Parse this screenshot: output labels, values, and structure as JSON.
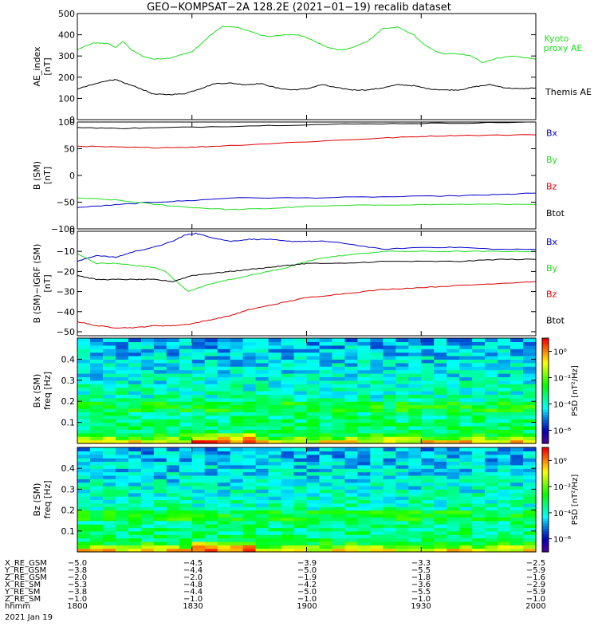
{
  "title": "GEO−KOMPSAT−2A 128.2E (2021−01−19) recalib dataset",
  "colors": {
    "black": "#000000",
    "green": "#22dd22",
    "blue": "#0000cc",
    "red": "#dd0000"
  },
  "chart_data": [
    {
      "type": "line",
      "ylabel": "AE_index",
      "yunit": "[nT]",
      "ylim": [
        0,
        500
      ],
      "yticks": [
        "0",
        "100",
        "200",
        "300",
        "400",
        "500"
      ],
      "xlim": [
        0,
        120
      ],
      "series": [
        {
          "name": "Kyoto proxy AE",
          "label_lines": [
            "Kyoto",
            "proxy AE"
          ],
          "color": "green",
          "x": [
            0,
            4,
            8,
            10,
            12,
            14,
            17,
            20,
            24,
            28,
            30,
            32,
            35,
            38,
            42,
            46,
            50,
            54,
            58,
            62,
            65,
            68,
            70,
            72,
            76,
            80,
            84,
            88,
            91,
            94,
            96,
            100,
            103,
            106,
            110,
            114,
            118,
            120
          ],
          "y": [
            330,
            360,
            360,
            340,
            370,
            330,
            300,
            285,
            290,
            310,
            320,
            350,
            400,
            440,
            435,
            410,
            390,
            400,
            400,
            370,
            345,
            330,
            330,
            340,
            370,
            430,
            435,
            400,
            350,
            320,
            310,
            310,
            300,
            270,
            290,
            300,
            290,
            285
          ]
        },
        {
          "name": "Themis AE",
          "label_lines": [
            "Themis AE"
          ],
          "color": "black",
          "x": [
            0,
            4,
            8,
            10,
            12,
            16,
            20,
            24,
            28,
            32,
            36,
            40,
            44,
            48,
            52,
            56,
            60,
            64,
            68,
            72,
            76,
            80,
            84,
            88,
            92,
            96,
            100,
            104,
            108,
            112,
            116,
            120
          ],
          "y": [
            145,
            165,
            185,
            188,
            175,
            150,
            120,
            118,
            122,
            145,
            170,
            172,
            165,
            170,
            150,
            140,
            145,
            165,
            150,
            140,
            140,
            150,
            165,
            160,
            145,
            140,
            140,
            155,
            165,
            150,
            145,
            150
          ]
        }
      ]
    },
    {
      "type": "line",
      "ylabel": "B (SM)",
      "yunit": "[nT]",
      "ylim": [
        -100,
        100
      ],
      "yticks": [
        "−100",
        "−50",
        "0",
        "50",
        "100"
      ],
      "xlim": [
        0,
        120
      ],
      "series": [
        {
          "name": "Bx",
          "color": "blue",
          "x": [
            0,
            10,
            20,
            30,
            40,
            60,
            80,
            100,
            110,
            120
          ],
          "y": [
            -60,
            -55,
            -50,
            -47,
            -42,
            -42,
            -40,
            -38,
            -36,
            -33
          ]
        },
        {
          "name": "By",
          "color": "green",
          "x": [
            0,
            10,
            20,
            30,
            40,
            50,
            60,
            80,
            100,
            120
          ],
          "y": [
            -42,
            -46,
            -54,
            -60,
            -64,
            -62,
            -58,
            -55,
            -54,
            -54
          ]
        },
        {
          "name": "Bz",
          "color": "red",
          "x": [
            0,
            10,
            20,
            30,
            40,
            60,
            80,
            90,
            100,
            120
          ],
          "y": [
            55,
            53,
            52,
            53,
            56,
            63,
            70,
            73,
            75,
            76
          ]
        },
        {
          "name": "Btot",
          "color": "black",
          "x": [
            0,
            10,
            20,
            40,
            60,
            80,
            100,
            120
          ],
          "y": [
            90,
            88,
            89,
            92,
            95,
            97,
            98,
            100
          ]
        }
      ]
    },
    {
      "type": "line",
      "ylabel": "B (SM)−IGRF (SM)",
      "yunit": "[nT]",
      "ylim": [
        -52,
        0
      ],
      "yticks": [
        "−50",
        "−40",
        "−30",
        "−20",
        "−10",
        "0"
      ],
      "xlim": [
        0,
        120
      ],
      "series": [
        {
          "name": "Bx",
          "color": "blue",
          "x": [
            0,
            5,
            10,
            15,
            20,
            25,
            28,
            31,
            35,
            40,
            45,
            50,
            55,
            60,
            65,
            70,
            80,
            90,
            100,
            110,
            120
          ],
          "y": [
            -15,
            -12,
            -13,
            -10,
            -8,
            -5,
            -2,
            -1,
            -3,
            -5,
            -4,
            -4,
            -5,
            -5,
            -5,
            -6,
            -9,
            -8,
            -8,
            -9,
            -9
          ]
        },
        {
          "name": "By",
          "color": "green",
          "x": [
            0,
            5,
            10,
            15,
            20,
            23,
            26,
            29,
            32,
            35,
            40,
            45,
            50,
            55,
            60,
            65,
            70,
            80,
            90,
            100,
            110,
            120
          ],
          "y": [
            -11,
            -16,
            -16,
            -17,
            -18,
            -20,
            -25,
            -30,
            -28,
            -26,
            -24,
            -22,
            -20,
            -18,
            -15,
            -13,
            -12,
            -10,
            -10,
            -10,
            -10,
            -10
          ]
        },
        {
          "name": "Bz",
          "color": "red",
          "x": [
            0,
            5,
            10,
            15,
            20,
            25,
            30,
            35,
            40,
            45,
            50,
            55,
            60,
            70,
            80,
            90,
            100,
            110,
            120
          ],
          "y": [
            -45,
            -47,
            -48,
            -48,
            -47,
            -47,
            -46,
            -44,
            -42,
            -39,
            -37,
            -35,
            -33,
            -31,
            -29,
            -28,
            -27,
            -26,
            -25
          ]
        },
        {
          "name": "Btot",
          "color": "black",
          "x": [
            0,
            5,
            10,
            15,
            20,
            25,
            30,
            35,
            40,
            45,
            50,
            55,
            60,
            70,
            80,
            90,
            100,
            110,
            120
          ],
          "y": [
            -22,
            -24,
            -24,
            -24,
            -24,
            -25,
            -22,
            -21,
            -20,
            -19,
            -18,
            -17,
            -16,
            -16,
            -15,
            -15,
            -15,
            -14,
            -14
          ]
        }
      ]
    },
    {
      "type": "heatmap",
      "ylabel": "Bx (SM)",
      "yunit": "freq [Hz]",
      "ylim": [
        0,
        0.5
      ],
      "yticks": [
        "0.1",
        "0.2",
        "0.3",
        "0.4"
      ],
      "colorbar": {
        "label": "PSD [nT²/Hz]",
        "ticks": [
          "10⁰",
          "10⁻²",
          "10⁻⁴",
          "10⁻⁶"
        ],
        "range_log10": [
          -7,
          1
        ]
      }
    },
    {
      "type": "heatmap",
      "ylabel": "Bz (SM)",
      "yunit": "freq [Hz]",
      "ylim": [
        0,
        0.5
      ],
      "yticks": [
        "0.1",
        "0.2",
        "0.3",
        "0.4"
      ],
      "colorbar": {
        "label": "PSD [nT²/Hz]",
        "ticks": [
          "10⁰",
          "10⁻²",
          "10⁻⁴",
          "10⁻⁶"
        ],
        "range_log10": [
          -7,
          1
        ]
      }
    }
  ],
  "ephemeris": {
    "rows": [
      {
        "label": "X_RE_GSM",
        "values": [
          "−5.0",
          "−4.5",
          "−3.9",
          "−3.3",
          "−2.5"
        ]
      },
      {
        "label": "Y_RE_GSM",
        "values": [
          "−3.8",
          "−4.4",
          "−5.0",
          "−5.5",
          "−5.9"
        ]
      },
      {
        "label": "Z_RE_GSM",
        "values": [
          "−2.0",
          "−2.0",
          "−1.9",
          "−1.8",
          "−1.6"
        ]
      },
      {
        "label": "X_RE_SM",
        "values": [
          "−5.3",
          "−4.8",
          "−4.2",
          "−3.6",
          "−2.9"
        ]
      },
      {
        "label": "Y_RE_SM",
        "values": [
          "−3.8",
          "−4.4",
          "−5.0",
          "−5.5",
          "−5.9"
        ]
      },
      {
        "label": "Z_RE_SM",
        "values": [
          "−1.0",
          "−1.0",
          "−1.0",
          "−1.0",
          "−1.0"
        ]
      },
      {
        "label": "hhmm",
        "values": [
          "1800",
          "1830",
          "1900",
          "1930",
          "2000"
        ]
      }
    ],
    "date": "2021 Jan 19"
  }
}
